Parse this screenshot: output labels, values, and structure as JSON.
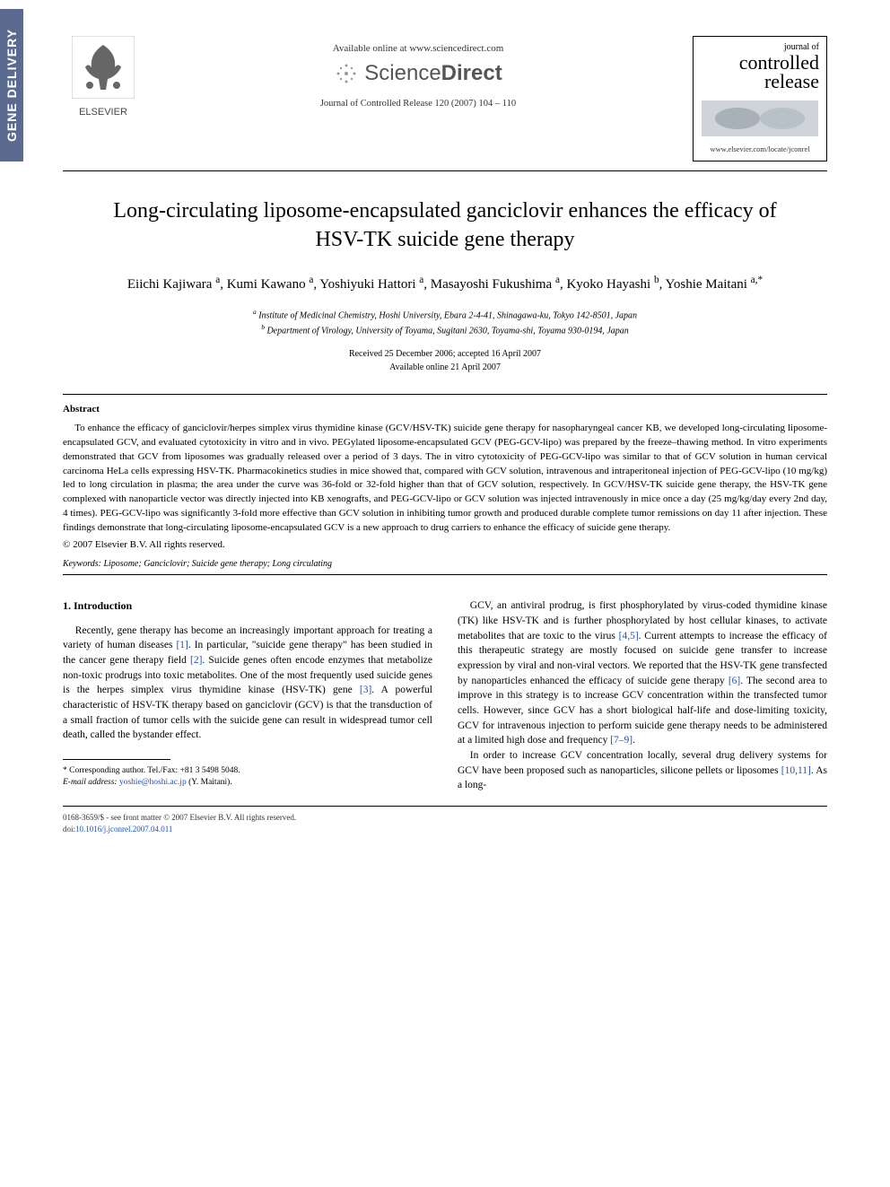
{
  "side_tab": "GENE DELIVERY",
  "header": {
    "elsevier": "ELSEVIER",
    "available": "Available online at www.sciencedirect.com",
    "sciencedirect_light": "Science",
    "sciencedirect_bold": "Direct",
    "journal_ref": "Journal of Controlled Release 120 (2007) 104 – 110",
    "jbox_small": "journal of",
    "jbox_line1": "controlled",
    "jbox_line2": "release",
    "jbox_url": "www.elsevier.com/locate/jconrel"
  },
  "title": "Long-circulating liposome-encapsulated ganciclovir enhances the efficacy of HSV-TK suicide gene therapy",
  "authors_html": "Eiichi Kajiwara <sup>a</sup>, Kumi Kawano <sup>a</sup>, Yoshiyuki Hattori <sup>a</sup>, Masayoshi Fukushima <sup>a</sup>, Kyoko Hayashi <sup>b</sup>, Yoshie Maitani <sup>a,*</sup>",
  "affiliations": {
    "a": "Institute of Medicinal Chemistry, Hoshi University, Ebara 2-4-41, Shinagawa-ku, Tokyo 142-8501, Japan",
    "b": "Department of Virology, University of Toyama, Sugitani 2630, Toyama-shi, Toyama 930-0194, Japan"
  },
  "dates": {
    "received": "Received 25 December 2006; accepted 16 April 2007",
    "online": "Available online 21 April 2007"
  },
  "abstract_label": "Abstract",
  "abstract": "To enhance the efficacy of ganciclovir/herpes simplex virus thymidine kinase (GCV/HSV-TK) suicide gene therapy for nasopharyngeal cancer KB, we developed long-circulating liposome-encapsulated GCV, and evaluated cytotoxicity in vitro and in vivo. PEGylated liposome-encapsulated GCV (PEG-GCV-lipo) was prepared by the freeze–thawing method. In vitro experiments demonstrated that GCV from liposomes was gradually released over a period of 3 days. The in vitro cytotoxicity of PEG-GCV-lipo was similar to that of GCV solution in human cervical carcinoma HeLa cells expressing HSV-TK. Pharmacokinetics studies in mice showed that, compared with GCV solution, intravenous and intraperitoneal injection of PEG-GCV-lipo (10 mg/kg) led to long circulation in plasma; the area under the curve was 36-fold or 32-fold higher than that of GCV solution, respectively. In GCV/HSV-TK suicide gene therapy, the HSV-TK gene complexed with nanoparticle vector was directly injected into KB xenografts, and PEG-GCV-lipo or GCV solution was injected intravenously in mice once a day (25 mg/kg/day every 2nd day, 4 times). PEG-GCV-lipo was significantly 3-fold more effective than GCV solution in inhibiting tumor growth and produced durable complete tumor remissions on day 11 after injection. These findings demonstrate that long-circulating liposome-encapsulated GCV is a new approach to drug carriers to enhance the efficacy of suicide gene therapy.",
  "copyright": "© 2007 Elsevier B.V. All rights reserved.",
  "keywords_label": "Keywords:",
  "keywords": "Liposome; Ganciclovir; Suicide gene therapy; Long circulating",
  "section1": {
    "heading": "1. Introduction",
    "p1_pre": "Recently, gene therapy has become an increasingly important approach for treating a variety of human diseases ",
    "ref1": "[1]",
    "p1_mid": ". In particular, \"suicide gene therapy\" has been studied in the cancer gene therapy field ",
    "ref2": "[2]",
    "p1_post": ". Suicide genes often encode enzymes that metabolize non-toxic prodrugs into toxic metabolites. One of the most frequently used suicide genes is the herpes simplex virus thymidine kinase (HSV-TK) gene ",
    "ref3": "[3]",
    "p1_end": ". A powerful characteristic of HSV-TK therapy based on ganciclovir (GCV) is that the transduction of a small fraction of tumor cells with the suicide gene can result in widespread tumor cell death, called the bystander effect.",
    "p2_pre": "GCV, an antiviral prodrug, is first phosphorylated by virus-coded thymidine kinase (TK) like HSV-TK and is further phosphorylated by host cellular kinases, to activate metabolites that are toxic to the virus ",
    "ref45": "[4,5]",
    "p2_mid": ". Current attempts to increase the efficacy of this therapeutic strategy are mostly focused on suicide gene transfer to increase expression by viral and non-viral vectors. We reported that the HSV-TK gene transfected by nanoparticles enhanced the efficacy of suicide gene therapy ",
    "ref6": "[6]",
    "p2_post": ". The second area to improve in this strategy is to increase GCV concentration within the transfected tumor cells. However, since GCV has a short biological half-life and dose-limiting toxicity, GCV for intravenous injection to perform suicide gene therapy needs to be administered at a limited high dose and frequency ",
    "ref79": "[7–9]",
    "p2_end": ".",
    "p3_pre": "In order to increase GCV concentration locally, several drug delivery systems for GCV have been proposed such as nanoparticles, silicone pellets or liposomes ",
    "ref1011": "[10,11]",
    "p3_end": ". As a long-"
  },
  "corr": {
    "line1": "* Corresponding author. Tel./Fax: +81 3 5498 5048.",
    "line2_label": "E-mail address:",
    "email": "yoshie@hoshi.ac.jp",
    "line2_post": "(Y. Maitani)."
  },
  "footer": {
    "line1": "0168-3659/$ - see front matter © 2007 Elsevier B.V. All rights reserved.",
    "doi_label": "doi:",
    "doi": "10.1016/j.jconrel.2007.04.011"
  },
  "colors": {
    "tab_bg": "#5b6b8f",
    "link": "#2050c0",
    "text": "#000000",
    "muted": "#555555"
  }
}
